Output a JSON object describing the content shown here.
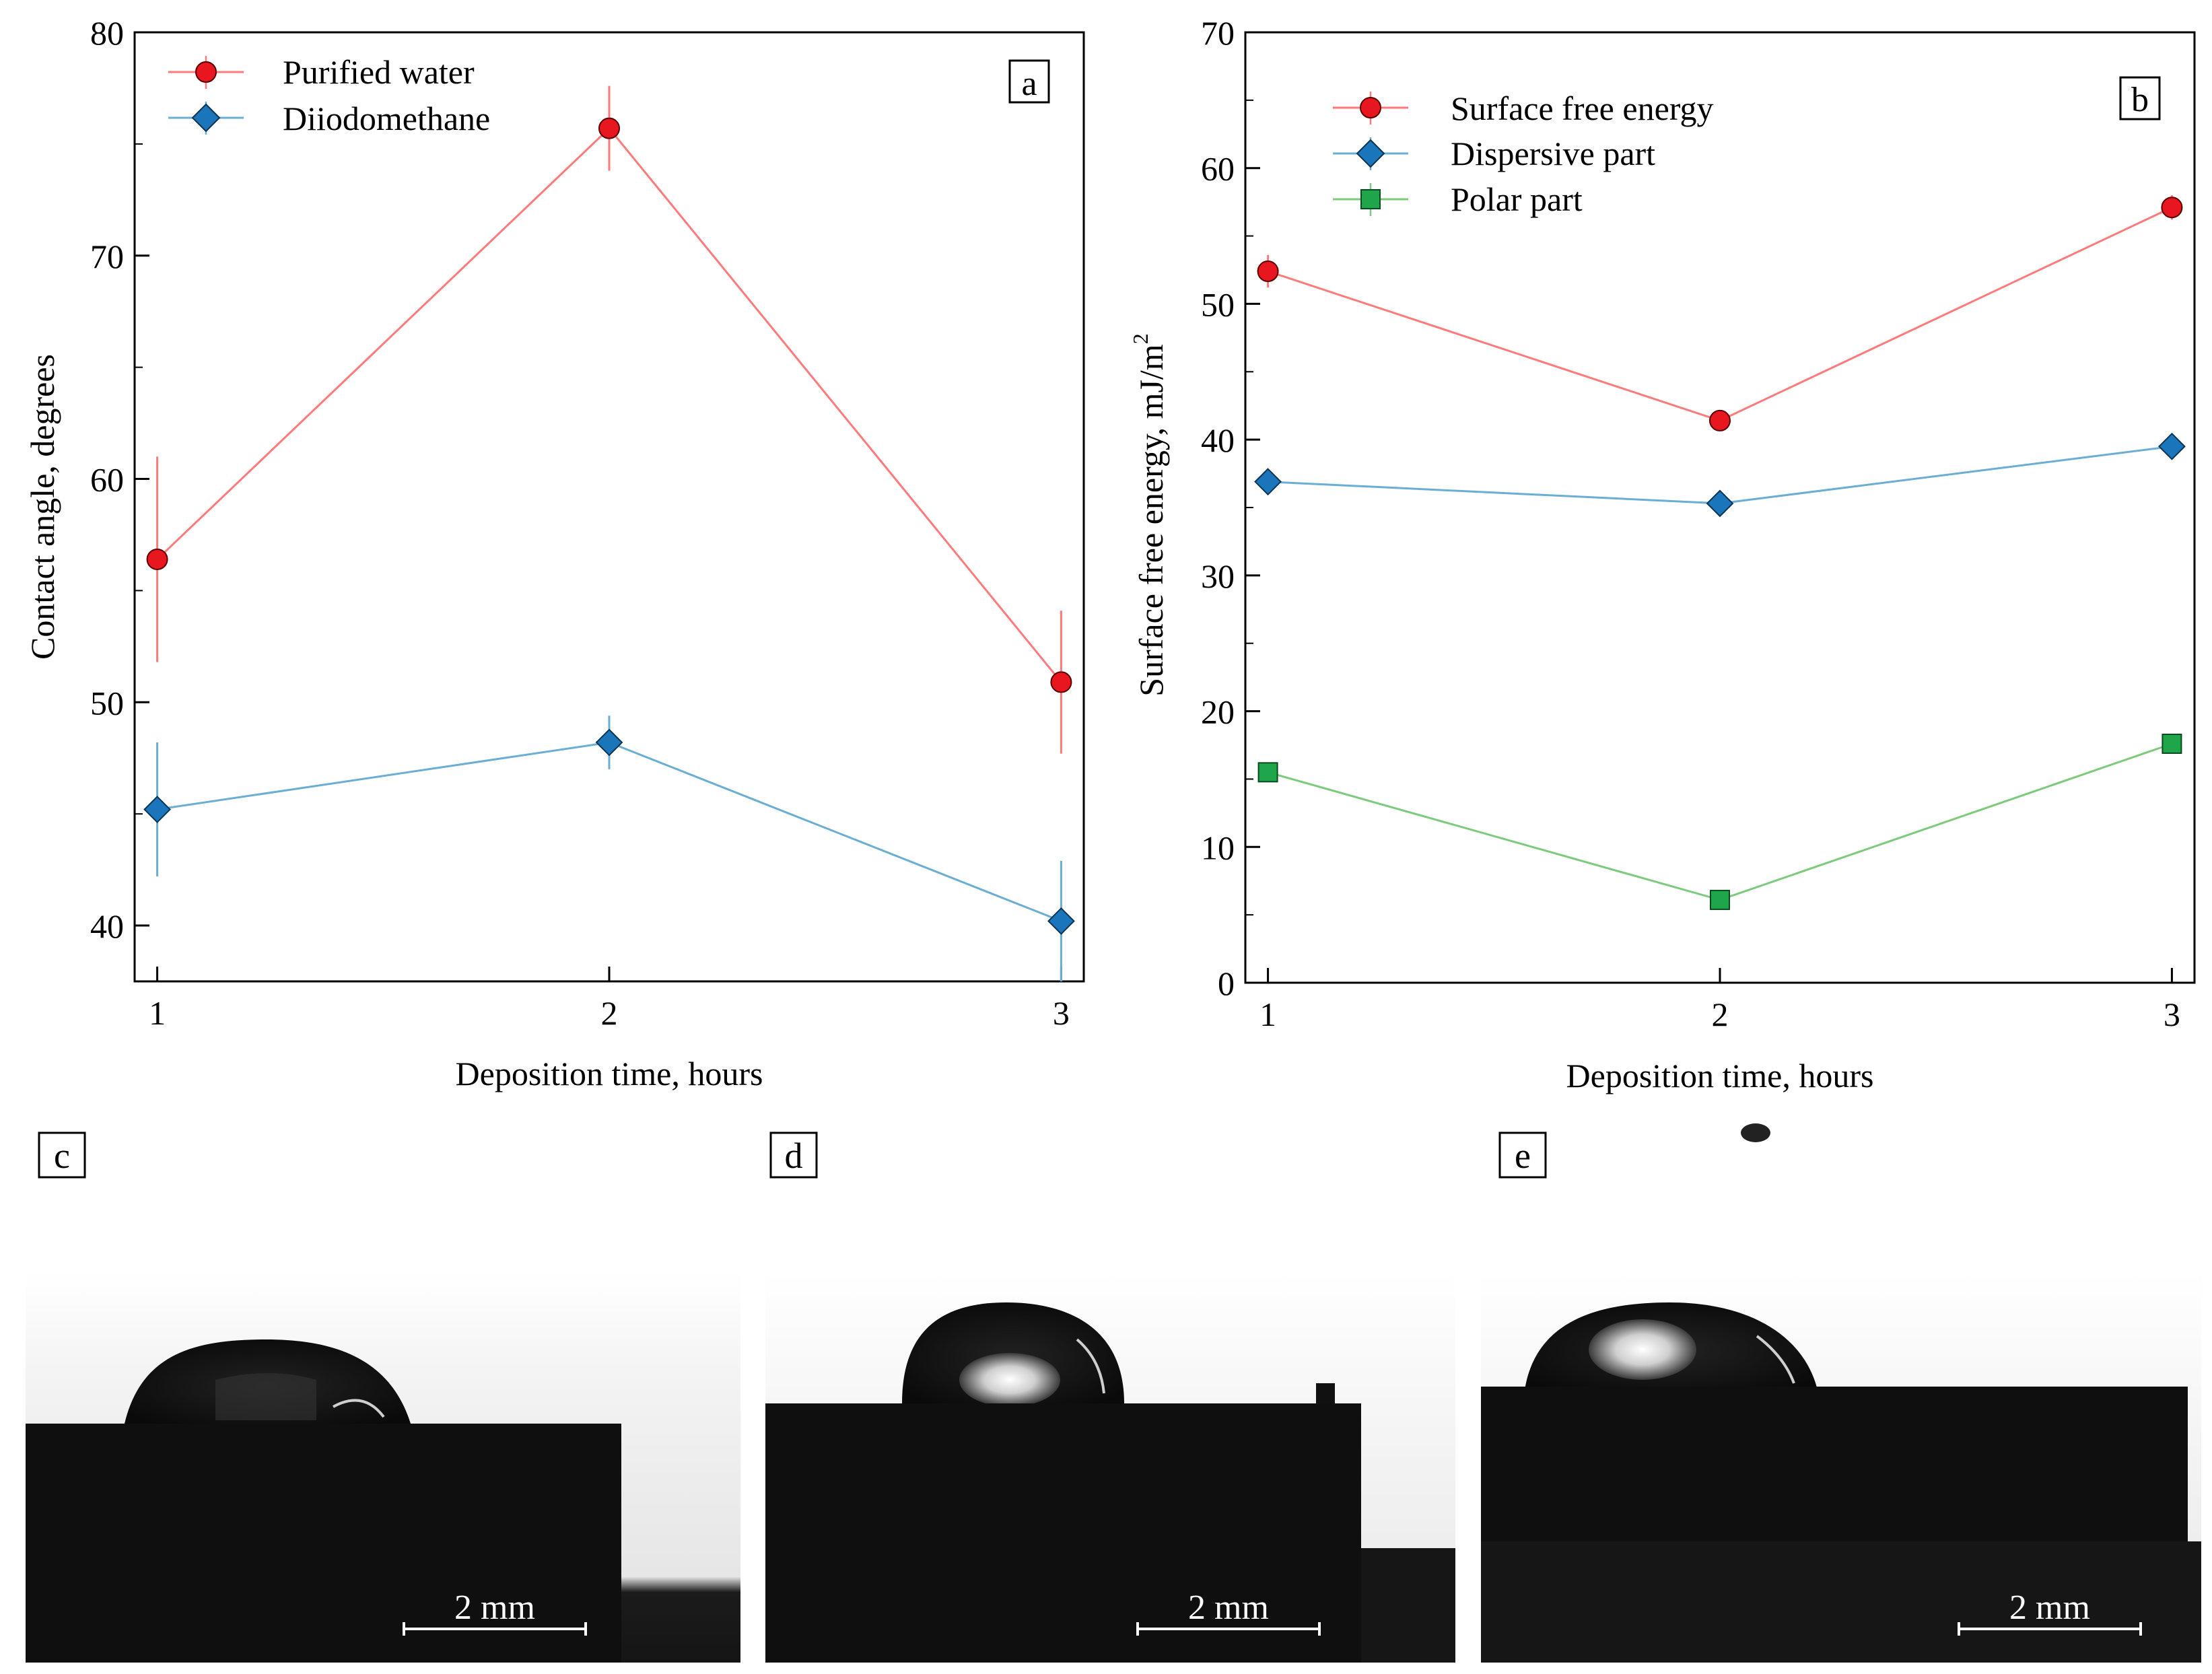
{
  "chart_data": [
    {
      "type": "line",
      "panel_label": "a",
      "xlabel": "Deposition time, hours",
      "ylabel": "Contact angle, degrees",
      "x": [
        1,
        2,
        3
      ],
      "xticks": [
        "1",
        "2",
        "3"
      ],
      "xlim": [
        0.95,
        3.05
      ],
      "ylim": [
        37.5,
        80
      ],
      "yticks": [
        "40",
        "50",
        "60",
        "70",
        "80"
      ],
      "grid": false,
      "legend_position": "top-left",
      "series": [
        {
          "name": "Purified water",
          "marker": "circle",
          "color": "#ff7a7a",
          "marker_color": "#e8161e",
          "values": [
            56.4,
            75.7,
            50.9
          ],
          "errors": [
            4.6,
            1.9,
            3.2
          ]
        },
        {
          "name": "Diiodomethane",
          "marker": "diamond",
          "color": "#6aaed6",
          "marker_color": "#1b75bb",
          "values": [
            45.2,
            48.2,
            40.2
          ],
          "errors": [
            3.0,
            1.2,
            2.7
          ]
        }
      ]
    },
    {
      "type": "line",
      "panel_label": "b",
      "xlabel": "Deposition time, hours",
      "ylabel": "Surface free energy, mJ/m",
      "ylabel_sup": "2",
      "x": [
        1,
        2,
        3
      ],
      "xticks": [
        "1",
        "2",
        "3"
      ],
      "xlim": [
        0.95,
        3.05
      ],
      "ylim": [
        0,
        70
      ],
      "yticks": [
        "0",
        "10",
        "20",
        "30",
        "40",
        "50",
        "60",
        "70"
      ],
      "grid": false,
      "legend_position": "top-left",
      "series": [
        {
          "name": "Surface free energy",
          "marker": "circle",
          "color": "#ff7a7a",
          "marker_color": "#e8161e",
          "values": [
            52.4,
            41.4,
            57.1
          ],
          "errors": [
            1.2,
            0.6,
            0.9
          ]
        },
        {
          "name": "Dispersive part",
          "marker": "diamond",
          "color": "#6aaed6",
          "marker_color": "#1b75bb",
          "values": [
            36.9,
            35.3,
            39.5
          ],
          "errors": [
            0,
            0,
            0
          ]
        },
        {
          "name": "Polar part",
          "marker": "square",
          "color": "#7ccb7c",
          "marker_color": "#1fa64a",
          "values": [
            15.5,
            6.1,
            17.6
          ],
          "errors": [
            0,
            0,
            0
          ]
        }
      ]
    }
  ],
  "photos": [
    {
      "label": "c",
      "scale_text": "2 mm"
    },
    {
      "label": "d",
      "scale_text": "2 mm"
    },
    {
      "label": "e",
      "scale_text": "2 mm"
    }
  ]
}
